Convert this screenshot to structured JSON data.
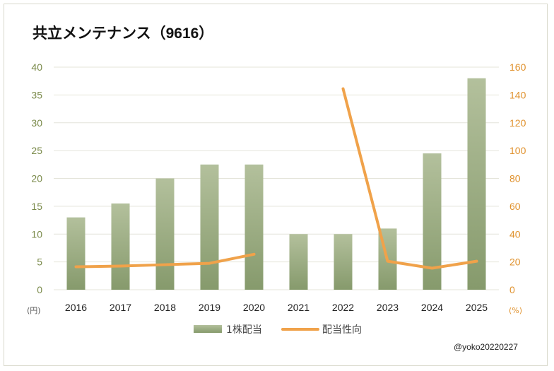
{
  "chart_data": {
    "type": "bar",
    "title": "共立メンテナンス（9616）",
    "categories": [
      "2016",
      "2017",
      "2018",
      "2019",
      "2020",
      "2021",
      "2022",
      "2023",
      "2024",
      "2025"
    ],
    "series": [
      {
        "name": "1株配当",
        "type": "bar",
        "axis": "left",
        "color": "#9aab84",
        "values": [
          13,
          15.5,
          20,
          22.5,
          22.5,
          10,
          10,
          11,
          24.5,
          38
        ]
      },
      {
        "name": "配当性向",
        "type": "line",
        "axis": "right",
        "color": "#f0a24a",
        "values": [
          16.5,
          17,
          18,
          19,
          25.5,
          null,
          144.5,
          20.5,
          15.5,
          20.5
        ]
      }
    ],
    "y_left": {
      "min": 0,
      "max": 40,
      "ticks": [
        0,
        5,
        10,
        15,
        20,
        25,
        30,
        35,
        40
      ],
      "unit": "(円)"
    },
    "y_right": {
      "min": 0,
      "max": 160,
      "ticks": [
        0,
        20,
        40,
        60,
        80,
        100,
        120,
        140,
        160
      ],
      "unit": "(%)"
    },
    "grid": true,
    "legend": "bottom"
  },
  "credit": "@yoko20220227"
}
